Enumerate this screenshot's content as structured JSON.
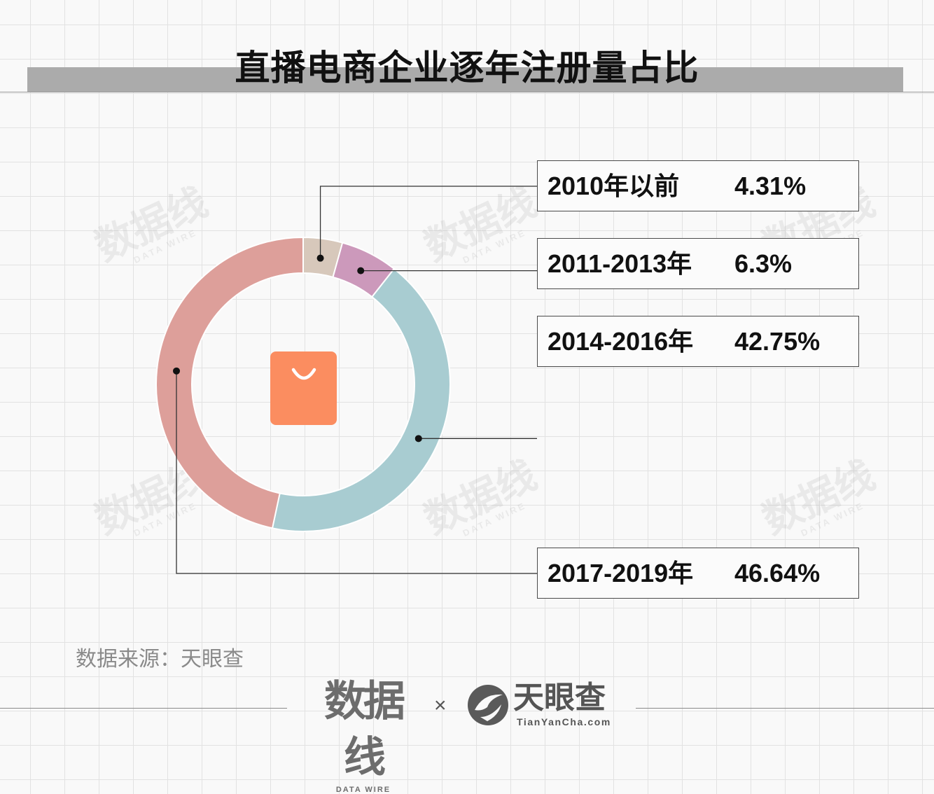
{
  "title": "直播电商企业逐年注册量占比",
  "chart_data": {
    "type": "pie",
    "categories": [
      "2010年以前",
      "2011-2013年",
      "2014-2016年",
      "2017-2019年"
    ],
    "values": [
      4.31,
      6.3,
      42.75,
      46.64
    ],
    "value_labels": [
      "4.31%",
      "6.3%",
      "42.75%",
      "46.64%"
    ],
    "colors": [
      "#d7c8bb",
      "#cc99bb",
      "#a8ccd1",
      "#dd9f9a"
    ],
    "style": "donut",
    "center_icon": "shopping-bag-icon",
    "center_icon_color": "#fb8d60"
  },
  "source": "数据来源：天眼查",
  "watermark": {
    "text": "数据线",
    "subtext": "DATA WIRE"
  },
  "footer": {
    "brand1": "数据线",
    "brand1_sub": "DATA WIRE",
    "times": "×",
    "brand2_icon": "tianyancha-logo-icon",
    "brand2": "天眼查",
    "brand2_url": "TianYanCha.com"
  }
}
